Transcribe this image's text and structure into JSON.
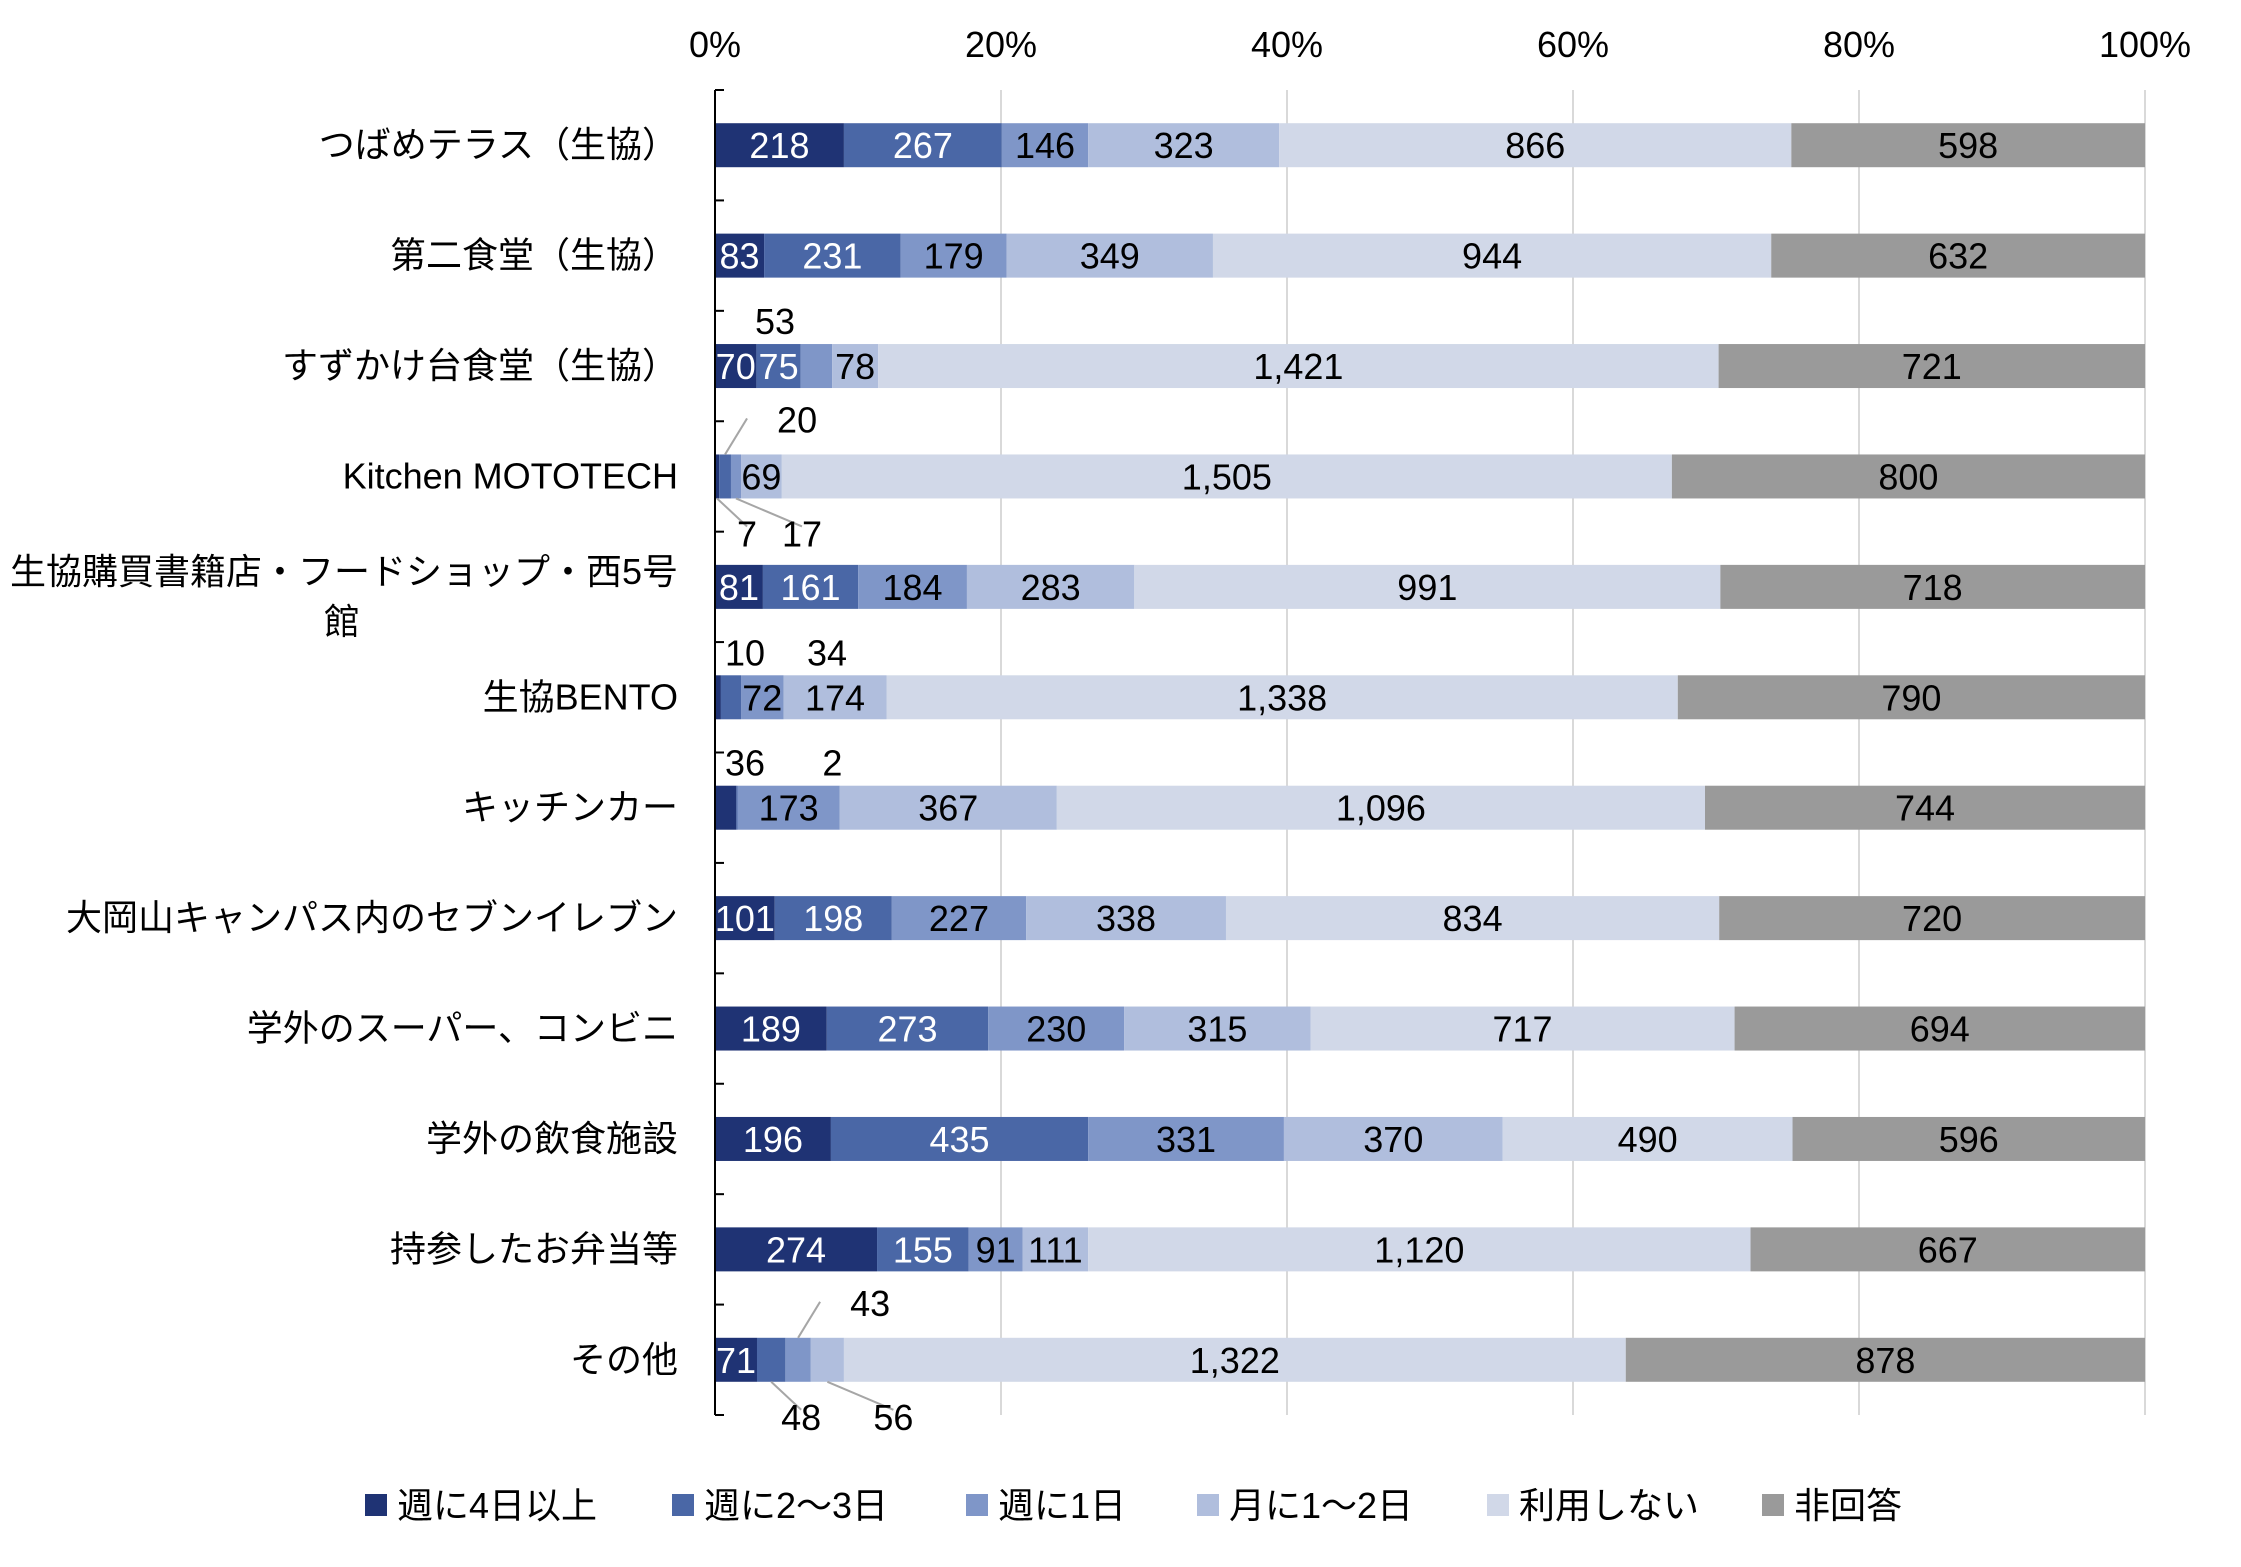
{
  "chart_data": {
    "type": "bar",
    "orientation": "horizontal",
    "stacking": "percent",
    "title": "",
    "xlabel": "",
    "ylabel": "",
    "xlim": [
      0,
      100
    ],
    "x_ticks": [
      "0%",
      "20%",
      "40%",
      "60%",
      "80%",
      "100%"
    ],
    "grid": true,
    "legend_position": "bottom",
    "categories": [
      "つばめテラス（生協）",
      "第二食堂（生協）",
      "すずかけ台食堂（生協）",
      "Kitchen MOTOTECH",
      "生協購買書籍店・フードショップ・西5号館",
      "生協BENTO",
      "キッチンカー",
      "大岡山キャンパス内のセブンイレブン",
      "学外のスーパー、コンビニ",
      "学外の飲食施設",
      "持参したお弁当等",
      "その他"
    ],
    "category_lines": [
      [
        "つばめテラス（生協）"
      ],
      [
        "第二食堂（生協）"
      ],
      [
        "すずかけ台食堂（生協）"
      ],
      [
        "Kitchen MOTOTECH"
      ],
      [
        "生協購買書籍店・フードショップ・西5号",
        "館"
      ],
      [
        "生協BENTO"
      ],
      [
        "キッチンカー"
      ],
      [
        "大岡山キャンパス内のセブンイレブン"
      ],
      [
        "学外のスーパー、コンビニ"
      ],
      [
        "学外の飲食施設"
      ],
      [
        "持参したお弁当等"
      ],
      [
        "その他"
      ]
    ],
    "series": [
      {
        "name": "週に4日以上",
        "color": "#1f3374",
        "values": [
          218,
          83,
          70,
          7,
          81,
          10,
          36,
          101,
          189,
          196,
          274,
          71
        ]
      },
      {
        "name": "週に2～3日",
        "color": "#4a67a6",
        "values": [
          267,
          231,
          75,
          20,
          161,
          34,
          2,
          198,
          273,
          435,
          155,
          48
        ]
      },
      {
        "name": "週に1日",
        "color": "#7f96c8",
        "values": [
          146,
          179,
          53,
          17,
          184,
          72,
          173,
          227,
          230,
          331,
          91,
          43
        ]
      },
      {
        "name": "月に1～2日",
        "color": "#b0bedd",
        "values": [
          323,
          349,
          78,
          69,
          283,
          174,
          367,
          338,
          315,
          370,
          111,
          56
        ]
      },
      {
        "name": "利用しない",
        "color": "#d1d8e8",
        "values": [
          866,
          944,
          1421,
          1505,
          991,
          1338,
          1096,
          834,
          717,
          490,
          1120,
          1322
        ]
      },
      {
        "name": "非回答",
        "color": "#9a9a9a",
        "values": [
          598,
          632,
          721,
          800,
          718,
          790,
          744,
          720,
          694,
          596,
          667,
          878
        ]
      }
    ]
  }
}
